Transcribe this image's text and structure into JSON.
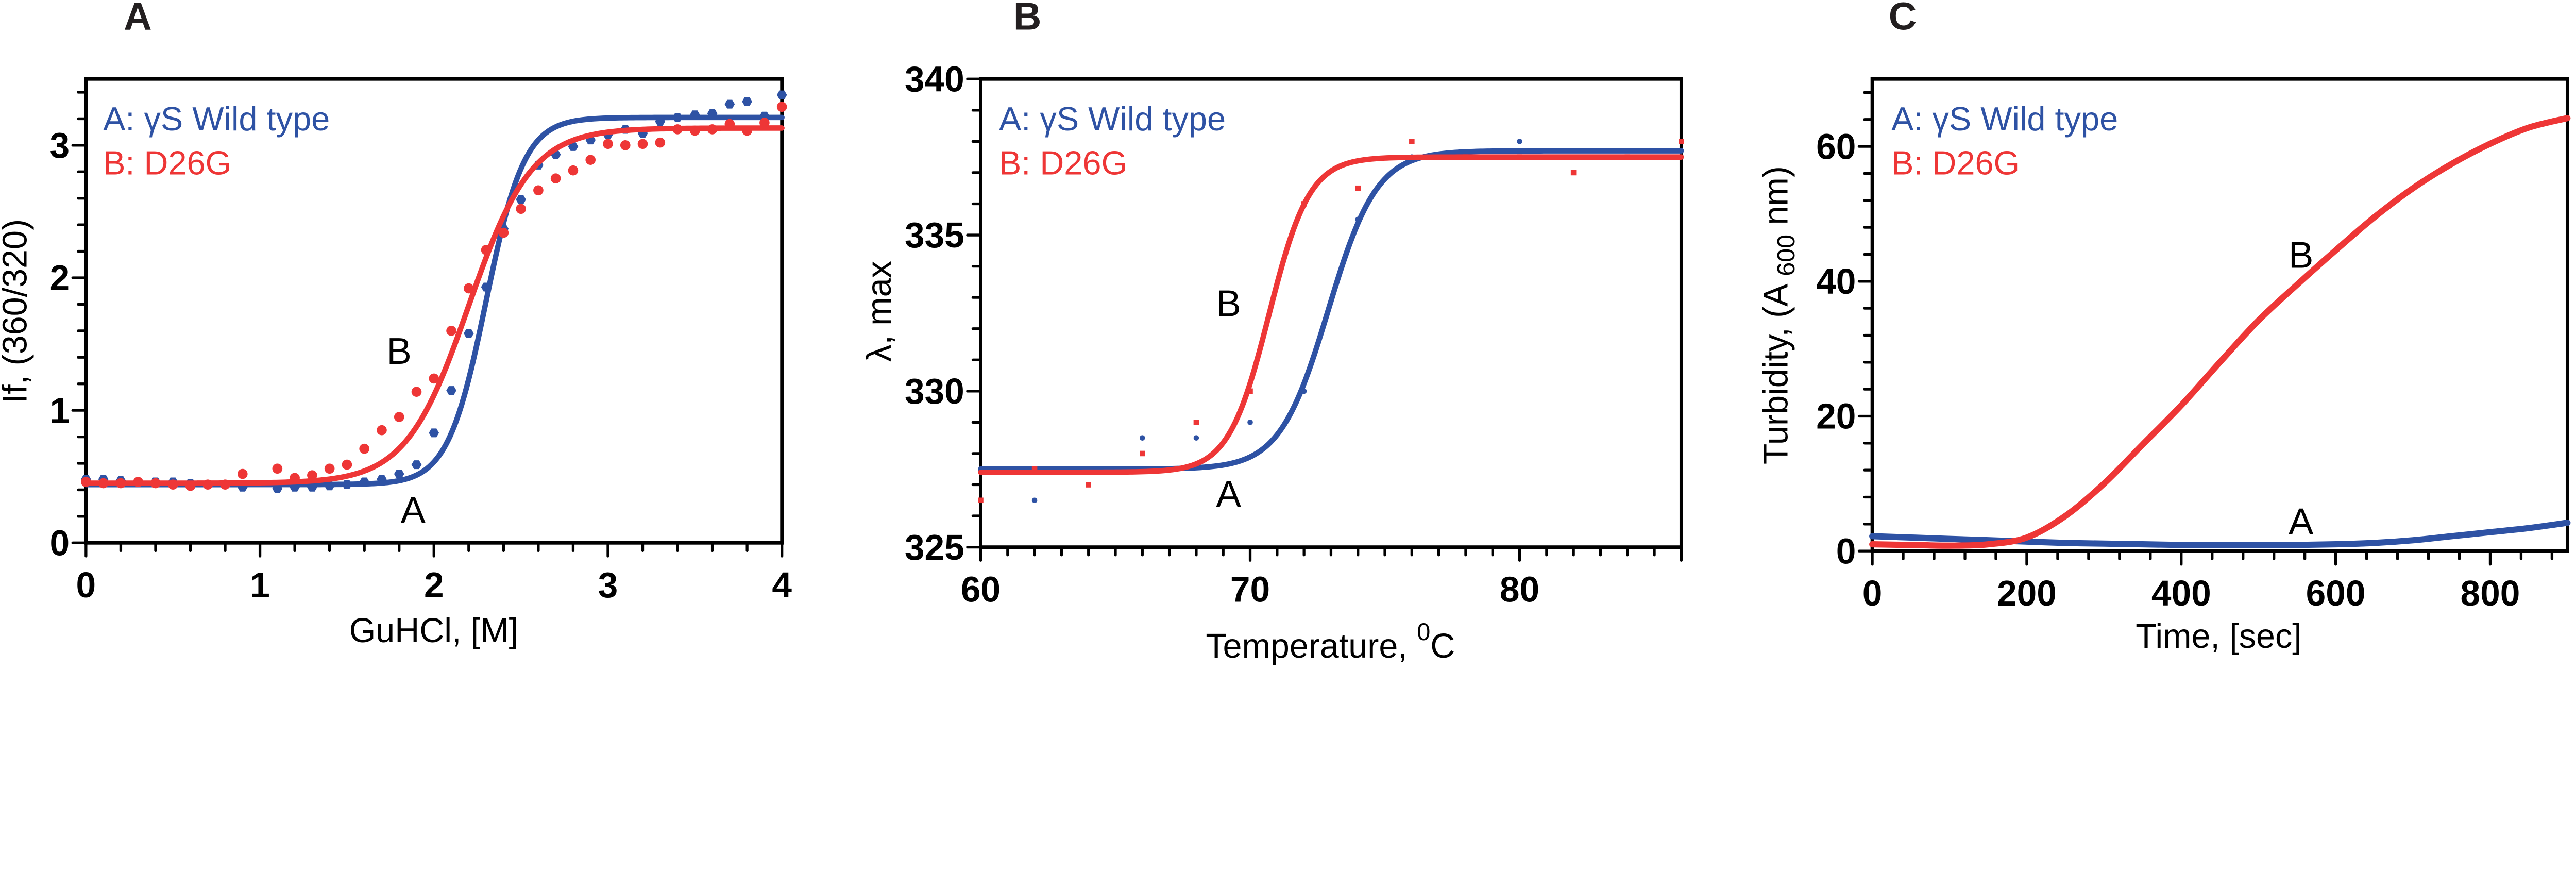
{
  "colors": {
    "wild_type": "#2e52a4",
    "d26g": "#ee3636",
    "axis": "#000000"
  },
  "chart_data": [
    {
      "panel": "A",
      "type": "scatter",
      "title": "",
      "xlabel": "GuHCl, [M]",
      "ylabel": "If, (360/320)",
      "xlim": [
        0,
        4
      ],
      "ylim": [
        0,
        3.5
      ],
      "xticks": [
        0,
        1,
        2,
        3,
        4
      ],
      "xtick_labels": [
        "0",
        "1",
        "2",
        "3",
        "4"
      ],
      "x_minor_step": 0.2,
      "yticks": [
        0,
        1,
        2,
        3
      ],
      "ytick_labels": [
        "0",
        "1",
        "2",
        "3"
      ],
      "y_minor_step": 0.2,
      "grid": false,
      "legend": {
        "placement": "top-left",
        "entries": [
          "A: γS Wild type",
          "B: D26G"
        ]
      },
      "annotations": [
        {
          "text": "B",
          "x": 1.8,
          "y": 1.35
        },
        {
          "text": "A",
          "x": 1.88,
          "y": 0.15
        }
      ],
      "series": [
        {
          "name": "A: γS Wild type",
          "marker": "hexagon",
          "points": [
            [
              0,
              0.48
            ],
            [
              0.1,
              0.48
            ],
            [
              0.2,
              0.47
            ],
            [
              0.3,
              0.46
            ],
            [
              0.4,
              0.46
            ],
            [
              0.5,
              0.46
            ],
            [
              0.6,
              0.45
            ],
            [
              0.7,
              0.44
            ],
            [
              0.8,
              0.44
            ],
            [
              0.9,
              0.42
            ],
            [
              1.1,
              0.41
            ],
            [
              1.2,
              0.42
            ],
            [
              1.3,
              0.42
            ],
            [
              1.4,
              0.43
            ],
            [
              1.5,
              0.44
            ],
            [
              1.6,
              0.46
            ],
            [
              1.7,
              0.48
            ],
            [
              1.8,
              0.52
            ],
            [
              1.9,
              0.59
            ],
            [
              2.0,
              0.83
            ],
            [
              2.1,
              1.15
            ],
            [
              2.2,
              1.58
            ],
            [
              2.3,
              1.93
            ],
            [
              2.4,
              2.37
            ],
            [
              2.5,
              2.59
            ],
            [
              2.6,
              2.85
            ],
            [
              2.7,
              2.93
            ],
            [
              2.8,
              2.99
            ],
            [
              2.9,
              3.04
            ],
            [
              3.0,
              3.08
            ],
            [
              3.1,
              3.12
            ],
            [
              3.2,
              3.09
            ],
            [
              3.3,
              3.18
            ],
            [
              3.4,
              3.21
            ],
            [
              3.5,
              3.23
            ],
            [
              3.6,
              3.24
            ],
            [
              3.7,
              3.31
            ],
            [
              3.8,
              3.33
            ],
            [
              3.9,
              3.22
            ],
            [
              4.0,
              3.38
            ]
          ],
          "fit": {
            "bottom": 0.44,
            "top": 3.21,
            "midpoint": 2.3,
            "slope": 0.11
          }
        },
        {
          "name": "B: D26G",
          "marker": "circle",
          "points": [
            [
              0,
              0.46
            ],
            [
              0.1,
              0.45
            ],
            [
              0.2,
              0.45
            ],
            [
              0.3,
              0.46
            ],
            [
              0.4,
              0.45
            ],
            [
              0.5,
              0.44
            ],
            [
              0.6,
              0.43
            ],
            [
              0.7,
              0.44
            ],
            [
              0.8,
              0.44
            ],
            [
              0.9,
              0.52
            ],
            [
              1.1,
              0.56
            ],
            [
              1.2,
              0.49
            ],
            [
              1.3,
              0.51
            ],
            [
              1.4,
              0.56
            ],
            [
              1.5,
              0.59
            ],
            [
              1.6,
              0.71
            ],
            [
              1.7,
              0.85
            ],
            [
              1.8,
              0.95
            ],
            [
              1.9,
              1.14
            ],
            [
              2.0,
              1.24
            ],
            [
              2.1,
              1.6
            ],
            [
              2.2,
              1.92
            ],
            [
              2.3,
              2.21
            ],
            [
              2.4,
              2.34
            ],
            [
              2.5,
              2.52
            ],
            [
              2.6,
              2.66
            ],
            [
              2.7,
              2.75
            ],
            [
              2.8,
              2.81
            ],
            [
              2.9,
              2.89
            ],
            [
              3.0,
              3.01
            ],
            [
              3.1,
              3.0
            ],
            [
              3.2,
              3.01
            ],
            [
              3.3,
              3.02
            ],
            [
              3.4,
              3.12
            ],
            [
              3.5,
              3.11
            ],
            [
              3.6,
              3.12
            ],
            [
              3.7,
              3.16
            ],
            [
              3.8,
              3.11
            ],
            [
              3.9,
              3.17
            ],
            [
              4.0,
              3.29
            ]
          ],
          "fit": {
            "bottom": 0.45,
            "top": 3.13,
            "midpoint": 2.2,
            "slope": 0.18
          }
        }
      ]
    },
    {
      "panel": "B",
      "type": "scatter",
      "title": "",
      "xlabel": "Temperature, ",
      "xlabel_superscript": "0",
      "xlabel_suffix": "C",
      "ylabel": "λ, max",
      "xlim": [
        60,
        86
      ],
      "ylim": [
        325,
        340
      ],
      "xticks": [
        60,
        70,
        80
      ],
      "xtick_labels": [
        "60",
        "70",
        "80"
      ],
      "x_minor_step": 1,
      "yticks": [
        325,
        330,
        335,
        340
      ],
      "ytick_labels": [
        "325",
        "330",
        "335",
        "340"
      ],
      "y_minor_step": 1,
      "grid": false,
      "legend": {
        "placement": "top-left",
        "entries": [
          "A: γS Wild type",
          "B: D26G"
        ]
      },
      "annotations": [
        {
          "text": "B",
          "x": 69.2,
          "y": 332.4
        },
        {
          "text": "A",
          "x": 69.2,
          "y": 326.3
        }
      ],
      "series": [
        {
          "name": "A: γS Wild type",
          "marker": "dot",
          "points": [
            [
              62,
              326.5
            ],
            [
              66,
              328.5
            ],
            [
              68,
              328.5
            ],
            [
              70,
              329.0
            ],
            [
              72,
              330.0
            ],
            [
              74,
              335.5
            ],
            [
              76,
              337.5
            ],
            [
              80,
              338.0
            ]
          ],
          "fit": {
            "bottom": 327.5,
            "top": 337.7,
            "midpoint": 72.9,
            "slope": 0.9
          }
        },
        {
          "name": "B: D26G",
          "marker": "square",
          "points": [
            [
              60,
              326.5
            ],
            [
              62,
              327.5
            ],
            [
              64,
              327.0
            ],
            [
              66,
              328.0
            ],
            [
              68,
              329.0
            ],
            [
              70,
              330.0
            ],
            [
              72,
              336.0
            ],
            [
              74,
              336.5
            ],
            [
              76,
              338.0
            ],
            [
              78,
              337.5
            ],
            [
              80,
              337.5
            ],
            [
              82,
              337.0
            ],
            [
              84,
              337.5
            ],
            [
              86,
              338.0
            ]
          ],
          "fit": {
            "bottom": 327.4,
            "top": 337.5,
            "midpoint": 70.7,
            "slope": 0.75
          }
        }
      ]
    },
    {
      "panel": "C",
      "type": "line",
      "title": "",
      "xlabel": "Time, [sec]",
      "ylabel": "Turbidity, (A ",
      "ylabel_subscript": "600",
      "ylabel_suffix": " nm)",
      "xlim": [
        0,
        900
      ],
      "ylim": [
        0,
        70
      ],
      "xticks": [
        0,
        200,
        400,
        600,
        800
      ],
      "xtick_labels": [
        "0",
        "200",
        "400",
        "600",
        "800"
      ],
      "x_minor_step": 40,
      "yticks": [
        0,
        20,
        40,
        60
      ],
      "ytick_labels": [
        "0",
        "20",
        "40",
        "60"
      ],
      "y_minor_step": 4,
      "grid": false,
      "legend": {
        "placement": "top-left",
        "entries": [
          "A: γS Wild type",
          "B: D26G"
        ]
      },
      "annotations": [
        {
          "text": "B",
          "x": 555,
          "y": 42
        },
        {
          "text": "A",
          "x": 555,
          "y": 2.5
        }
      ],
      "series": [
        {
          "name": "A: γS Wild type",
          "x": [
            0,
            50,
            100,
            150,
            200,
            250,
            300,
            350,
            400,
            450,
            500,
            550,
            600,
            650,
            700,
            750,
            800,
            850,
            900
          ],
          "y": [
            2.2,
            2.0,
            1.8,
            1.6,
            1.4,
            1.2,
            1.1,
            1.0,
            0.9,
            0.9,
            0.9,
            0.9,
            1.0,
            1.2,
            1.6,
            2.2,
            2.8,
            3.4,
            4.2
          ]
        },
        {
          "name": "B: D26G",
          "x": [
            0,
            50,
            100,
            150,
            200,
            250,
            300,
            350,
            400,
            450,
            500,
            550,
            600,
            650,
            700,
            750,
            800,
            850,
            900
          ],
          "y": [
            1.0,
            0.9,
            0.8,
            1.0,
            2.0,
            5.2,
            10.0,
            15.8,
            21.6,
            28.0,
            34.2,
            39.5,
            44.6,
            49.5,
            53.8,
            57.4,
            60.4,
            62.8,
            64.2
          ]
        }
      ]
    }
  ]
}
